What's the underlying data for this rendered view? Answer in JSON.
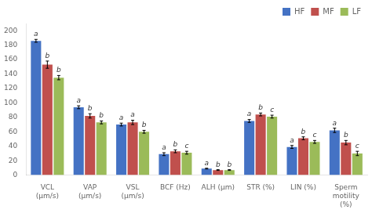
{
  "chart_data": {
    "type": "bar",
    "categories": [
      "VCL\n(μm/s)",
      "VAP\n(μm/s)",
      "VSL\n(μm/s)",
      "BCF (Hz)",
      "ALH (μm)",
      "STR (%)",
      "LIN (%)",
      "Sperm\nmotility\n(%)"
    ],
    "series": [
      {
        "name": "HF",
        "color": "#4472C4",
        "values": [
          186,
          94,
          70,
          29,
          9,
          75,
          39,
          62
        ],
        "errors": [
          2,
          2,
          2,
          2,
          0.5,
          2,
          2,
          3
        ],
        "annotations": [
          "a",
          "a",
          "a",
          "a",
          "a",
          "a",
          "a",
          "a"
        ]
      },
      {
        "name": "MF",
        "color": "#C0504D",
        "values": [
          153,
          82,
          73,
          33,
          7,
          84,
          51,
          45
        ],
        "errors": [
          5,
          3,
          3,
          2,
          0.5,
          2,
          2,
          3
        ],
        "annotations": [
          "b",
          "b",
          "a",
          "b",
          "b",
          "b",
          "b",
          "b"
        ]
      },
      {
        "name": "LF",
        "color": "#9BBB59",
        "values": [
          135,
          73,
          60,
          31,
          7,
          81,
          46,
          30
        ],
        "errors": [
          3,
          2,
          2,
          2,
          0.5,
          2,
          2,
          3
        ],
        "annotations": [
          "b",
          "b",
          "b",
          "c",
          "b",
          "c",
          "c",
          "c"
        ]
      }
    ],
    "ylim": [
      0,
      210
    ],
    "yticks": [
      0,
      20,
      40,
      60,
      80,
      100,
      120,
      140,
      160,
      180,
      200
    ],
    "grid": false,
    "legend": "upper right"
  }
}
